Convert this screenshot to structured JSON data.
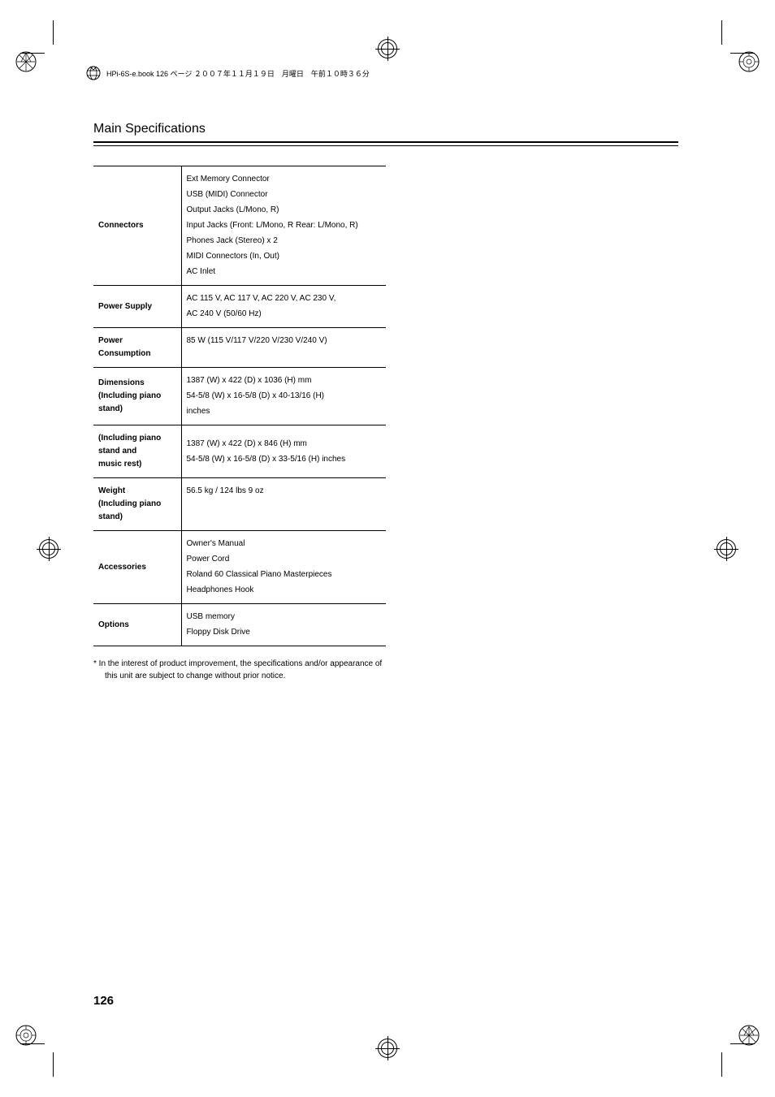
{
  "header": {
    "text": "HPi-6S-e.book  126 ページ  ２００７年１１月１９日　月曜日　午前１０時３６分"
  },
  "title": "Main Specifications",
  "rows": [
    {
      "label_lines": [
        "Connectors"
      ],
      "value_lines": [
        "Ext Memory Connector",
        "USB (MIDI) Connector",
        "Output Jacks (L/Mono, R)",
        "Input Jacks (Front: L/Mono, R Rear: L/Mono, R)",
        "Phones Jack (Stereo) x 2",
        "MIDI Connectors (In, Out)",
        "AC Inlet"
      ]
    },
    {
      "label_lines": [
        "Power Supply"
      ],
      "value_lines": [
        "AC 115 V, AC 117 V, AC 220 V, AC 230 V,",
        "AC 240 V (50/60 Hz)"
      ]
    },
    {
      "label_lines": [
        "Power",
        "Consumption"
      ],
      "value_lines": [
        "85 W (115 V/117 V/220 V/230 V/240 V)"
      ]
    },
    {
      "label_lines": [
        "Dimensions",
        "(Including piano",
        "stand)"
      ],
      "value_lines": [
        "1387 (W) x 422 (D) x 1036 (H) mm",
        "54-5/8 (W) x 16-5/8 (D) x 40-13/16 (H)",
        "inches"
      ]
    },
    {
      "label_lines": [
        "(Including piano",
        "stand and",
        "music rest)"
      ],
      "value_lines": [
        "1387 (W) x 422 (D) x 846 (H) mm",
        "54-5/8 (W) x 16-5/8 (D) x 33-5/16 (H) inches"
      ]
    },
    {
      "label_lines": [
        "Weight",
        "(Including piano",
        "stand)"
      ],
      "value_lines": [
        "56.5 kg / 124 lbs 9 oz"
      ]
    },
    {
      "label_lines": [
        "Accessories"
      ],
      "value_lines": [
        "Owner's Manual",
        "Power Cord",
        "Roland 60 Classical Piano Masterpieces",
        "Headphones Hook"
      ]
    },
    {
      "label_lines": [
        "Options"
      ],
      "value_lines": [
        "USB memory",
        "Floppy Disk Drive"
      ]
    }
  ],
  "footnote": "*   In the interest of product improvement, the specifications and/or appearance of this unit are subject to change without prior notice.",
  "page_number": "126"
}
